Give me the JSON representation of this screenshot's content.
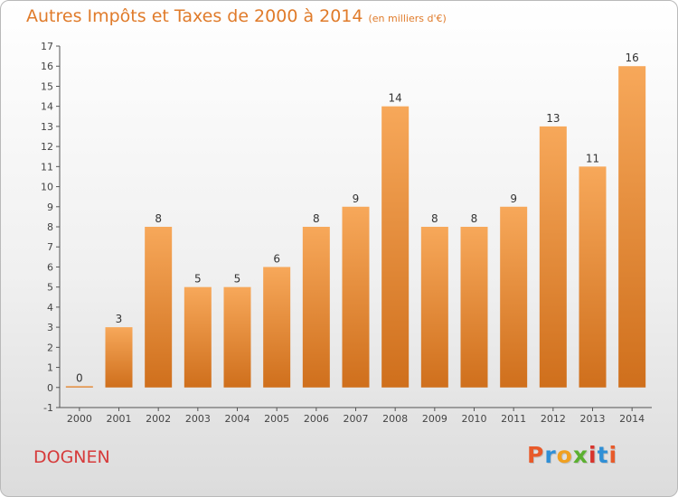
{
  "header": {
    "title": "Autres Impôts et Taxes de 2000 à 2014",
    "unit_note": "(en milliers d'€)"
  },
  "footer": {
    "commune": "DOGNEN",
    "logo_letters": [
      "P",
      "r",
      "o",
      "x",
      "i",
      "t",
      "i"
    ]
  },
  "colors": {
    "bar_light": "#f7a85a",
    "bar_dark": "#cf6f1c",
    "title": "#e07b2a",
    "commune": "#d63b3b",
    "logo": [
      "#e85a2a",
      "#2f8fd6",
      "#f0a020",
      "#5bb030",
      "#d8342c",
      "#2f8fd6",
      "#e85a2a"
    ]
  },
  "chart_data": {
    "type": "bar",
    "title": "Autres Impôts et Taxes de 2000 à 2014",
    "ylabel": "(en milliers d'€)",
    "categories": [
      "2000",
      "2001",
      "2002",
      "2003",
      "2004",
      "2005",
      "2006",
      "2007",
      "2008",
      "2009",
      "2010",
      "2011",
      "2012",
      "2013",
      "2014"
    ],
    "values": [
      0,
      3,
      8,
      5,
      5,
      6,
      8,
      9,
      14,
      8,
      8,
      9,
      13,
      11,
      16
    ],
    "data_labels": [
      "0",
      "3",
      "8",
      "5",
      "5",
      "6",
      "8",
      "9",
      "14",
      "8",
      "8",
      "9",
      "13",
      "11",
      "16"
    ],
    "yticks": [
      "-1",
      "0",
      "1",
      "2",
      "3",
      "4",
      "5",
      "6",
      "7",
      "8",
      "9",
      "10",
      "11",
      "12",
      "13",
      "14",
      "15",
      "16",
      "17"
    ],
    "ylim": [
      -1,
      17
    ],
    "grid": false
  }
}
